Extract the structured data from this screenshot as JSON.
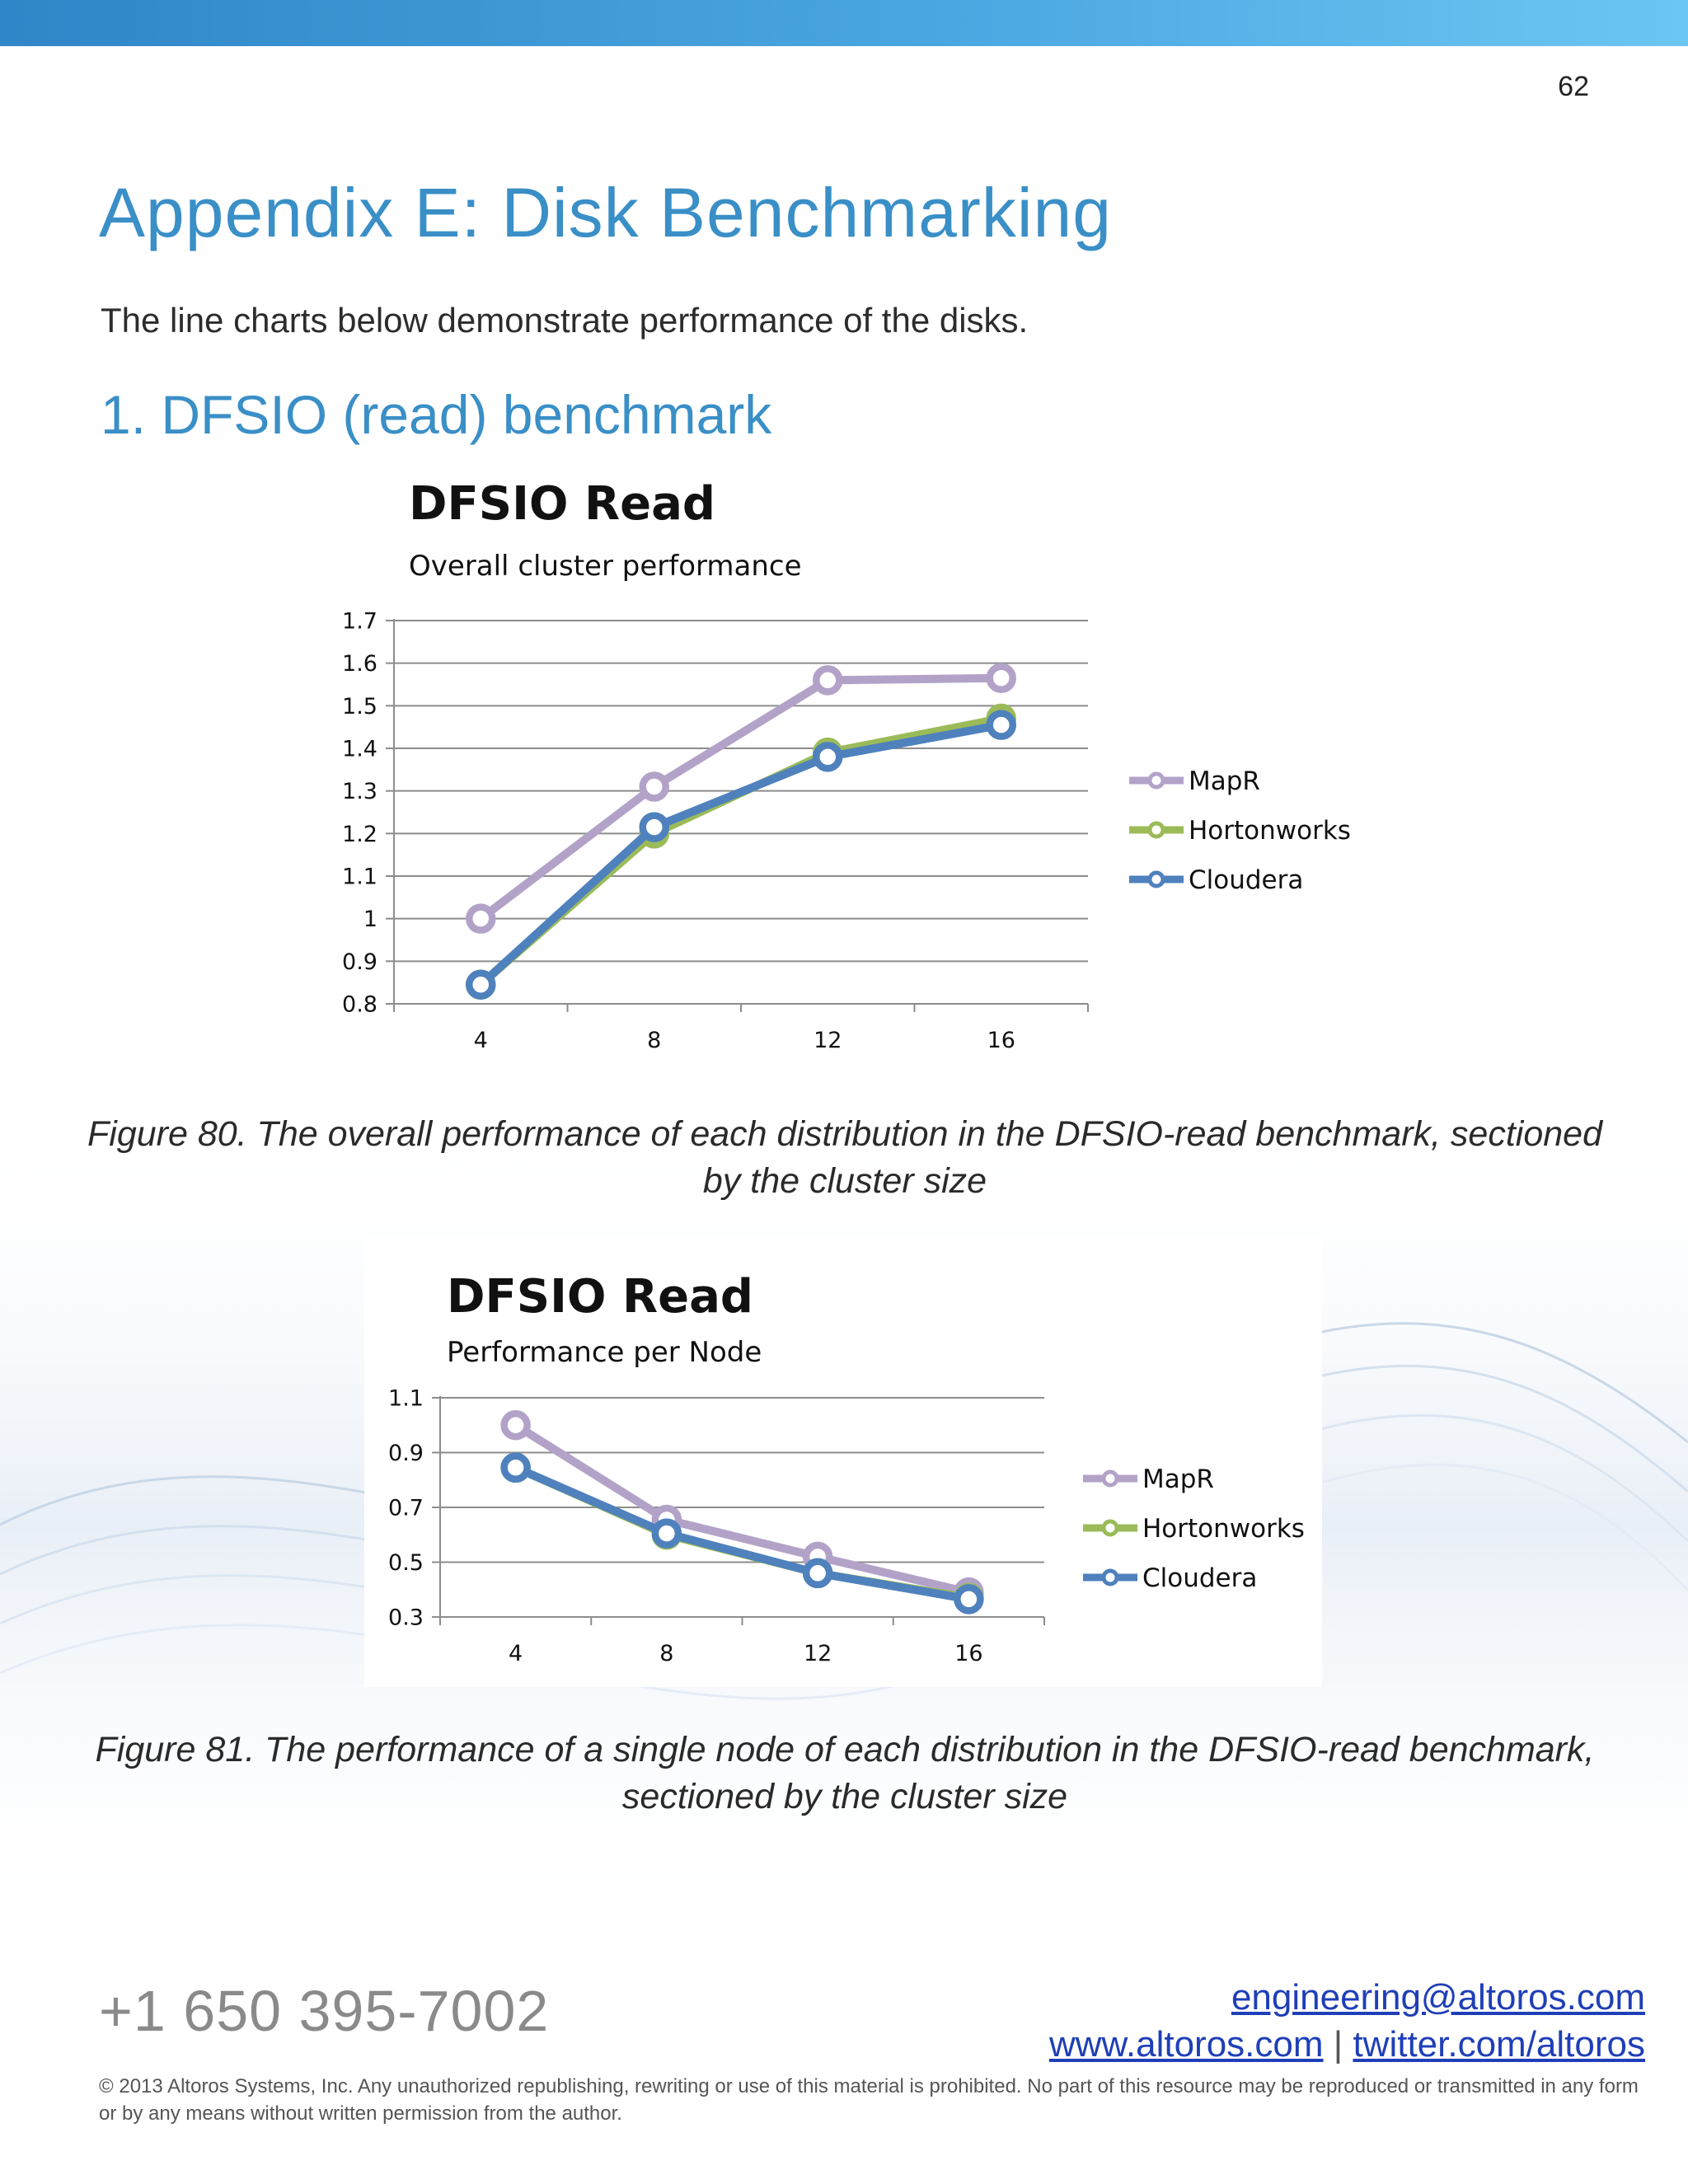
{
  "page": {
    "number": "62",
    "title": "Appendix E: Disk Benchmarking",
    "intro": "The line charts below demonstrate performance of the disks.",
    "section_heading": "1. DFSIO (read) benchmark"
  },
  "figures": [
    {
      "caption": "Figure 80. The overall performance of each distribution in the DFSIO-read benchmark, sectioned by the cluster size"
    },
    {
      "caption": "Figure 81. The performance of a single node of each distribution in the DFSIO-read benchmark, sectioned by the cluster size"
    }
  ],
  "colors": {
    "MapR": "#b3a2c8",
    "Hortonworks": "#9bbb59",
    "Cloudera": "#4f81bd",
    "accent": "#3a8fc7"
  },
  "chart_data": [
    {
      "type": "line",
      "title": "DFSIO Read",
      "subtitle": "Overall cluster performance",
      "categories": [
        "4",
        "8",
        "12",
        "16"
      ],
      "yticks": [
        "1.7",
        "1.6",
        "1.5",
        "1.4",
        "1.3",
        "1.2",
        "1.1",
        "1",
        "0.9",
        "0.8"
      ],
      "ylim": [
        0.8,
        1.7
      ],
      "grid": true,
      "legend": "right",
      "series": [
        {
          "name": "MapR",
          "values": [
            1.0,
            1.31,
            1.56,
            1.565
          ]
        },
        {
          "name": "Hortonworks",
          "values": [
            0.845,
            1.2,
            1.39,
            1.47
          ]
        },
        {
          "name": "Cloudera",
          "values": [
            0.845,
            1.215,
            1.38,
            1.455
          ]
        }
      ],
      "xlabel": "",
      "ylabel": ""
    },
    {
      "type": "line",
      "title": "DFSIO Read",
      "subtitle": "Performance per Node",
      "categories": [
        "4",
        "8",
        "12",
        "16"
      ],
      "yticks": [
        "1.1",
        "0.9",
        "0.7",
        "0.5",
        "0.3"
      ],
      "ylim": [
        0.3,
        1.1
      ],
      "grid": true,
      "legend": "right",
      "series": [
        {
          "name": "MapR",
          "values": [
            1.0,
            0.655,
            0.52,
            0.39
          ]
        },
        {
          "name": "Hortonworks",
          "values": [
            0.845,
            0.6,
            0.46,
            0.37
          ]
        },
        {
          "name": "Cloudera",
          "values": [
            0.845,
            0.605,
            0.46,
            0.365
          ]
        }
      ],
      "xlabel": "",
      "ylabel": ""
    }
  ],
  "footer": {
    "phone": "+1 650 395-7002",
    "email": "engineering@altoros.com",
    "website": "www.altoros.com",
    "separator": "|",
    "twitter": "twitter.com/altoros",
    "copyright": "© 2013 Altoros Systems, Inc. Any unauthorized republishing, rewriting or use of this material is prohibited. No part of this resource may be reproduced or transmitted in any form or by any means without written permission from the author."
  }
}
